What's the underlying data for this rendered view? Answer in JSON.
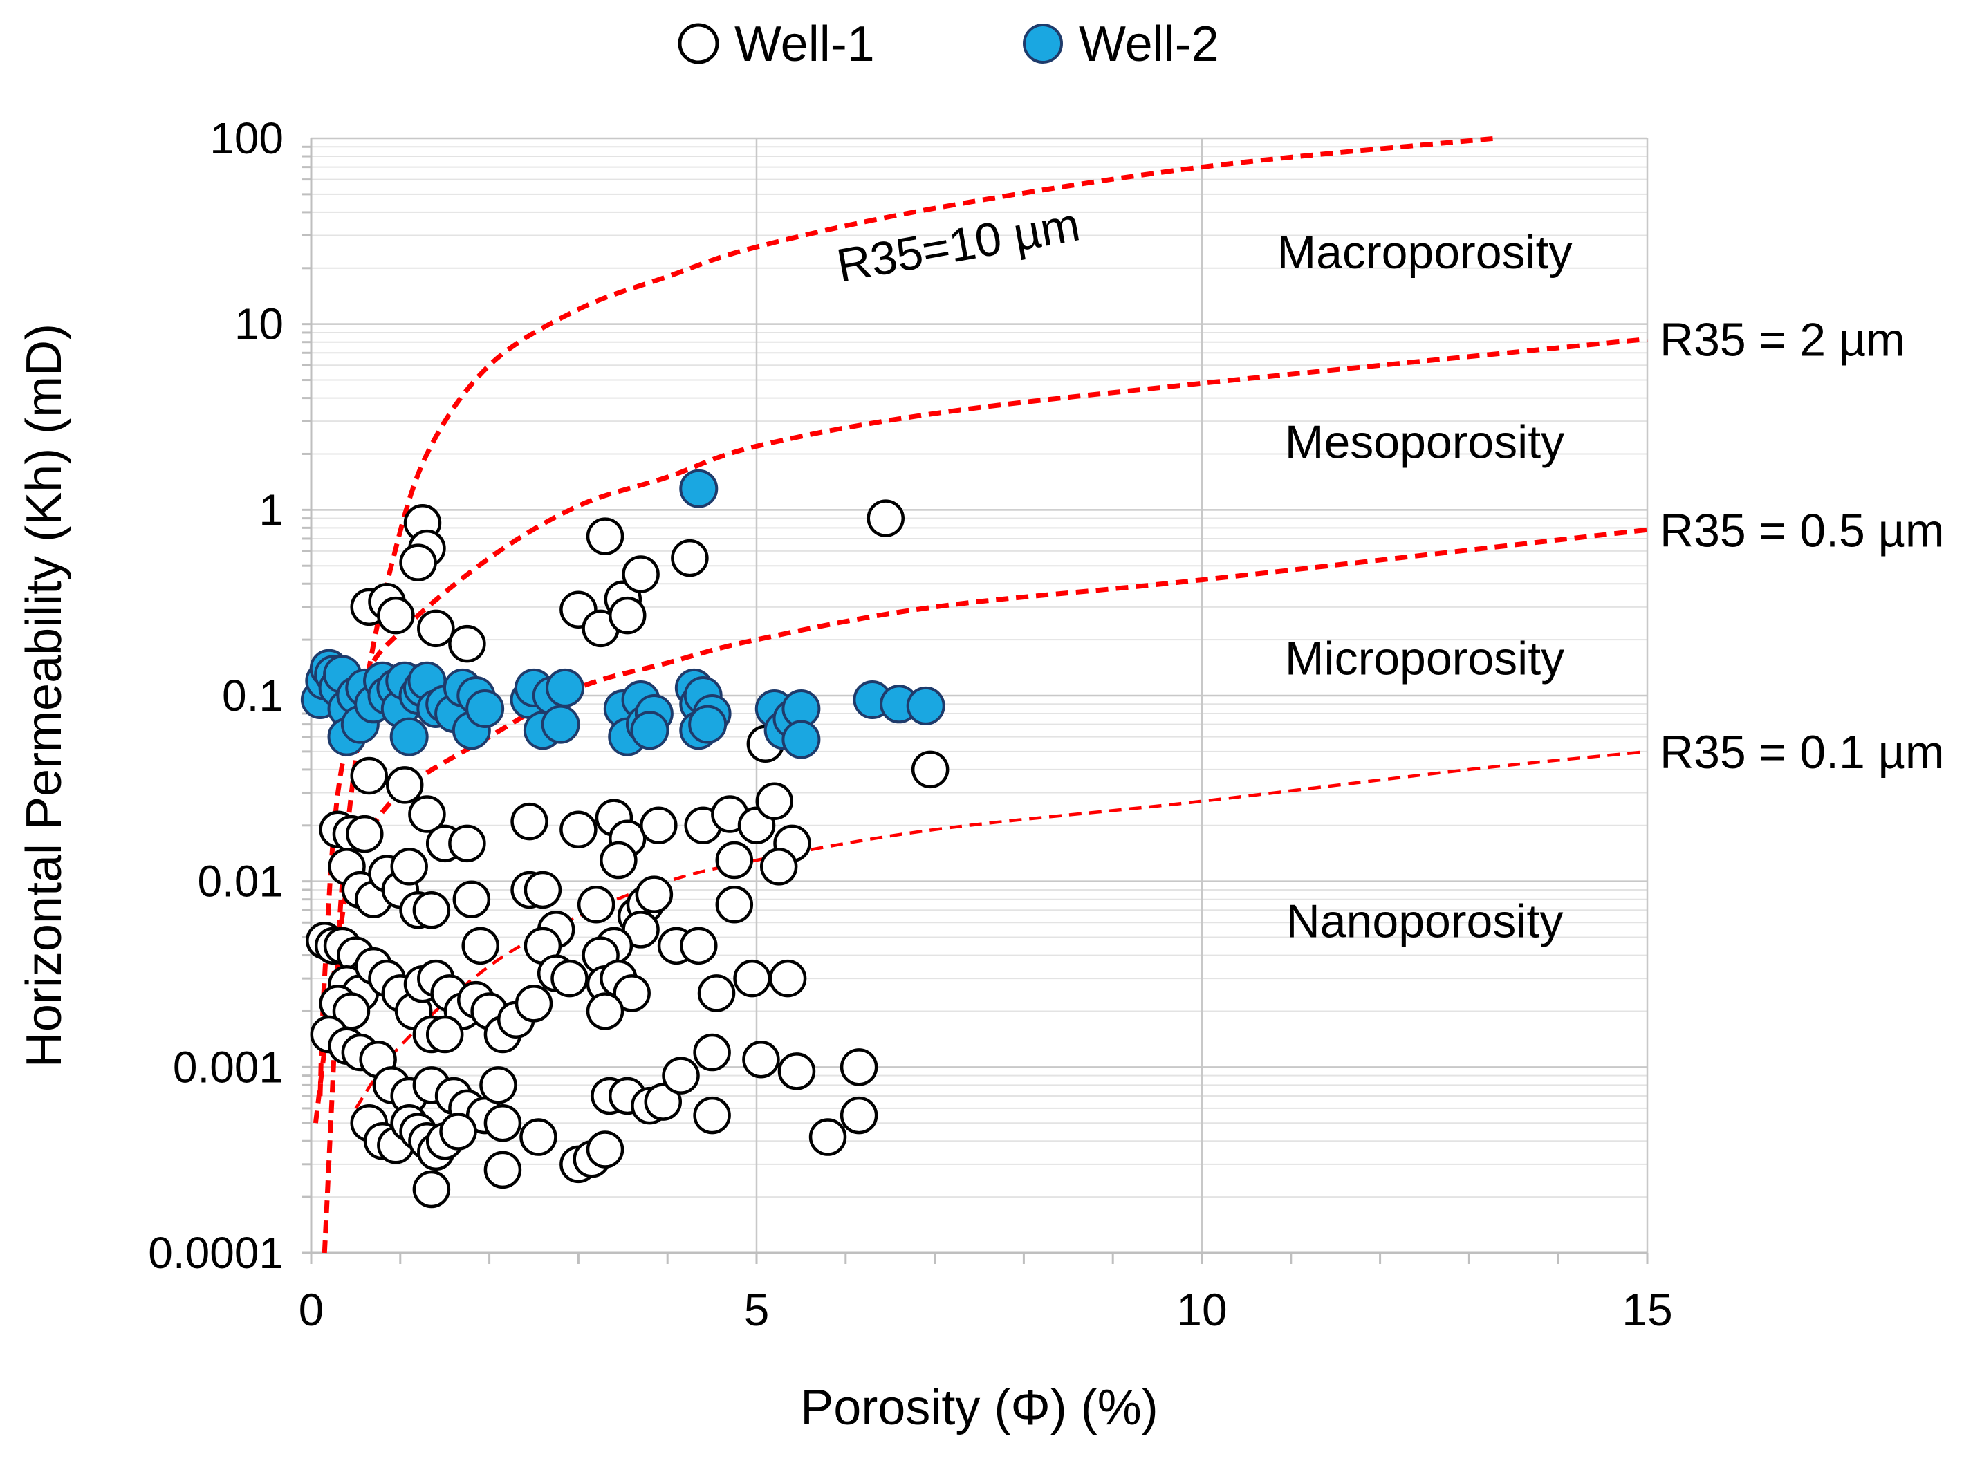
{
  "chart_data": {
    "type": "scatter",
    "title": "",
    "xlabel": "Porosity (Φ) (%)",
    "ylabel": "Horizontal Permeability (Kh) (mD)",
    "xlim": [
      0,
      15
    ],
    "ylim": [
      0.0001,
      100
    ],
    "yscale": "log",
    "grid": true,
    "legend_position": "top-center",
    "x_ticks": [
      {
        "value": 0,
        "label": "0"
      },
      {
        "value": 5,
        "label": "5"
      },
      {
        "value": 10,
        "label": "10"
      },
      {
        "value": 15,
        "label": "15"
      }
    ],
    "y_ticks": [
      {
        "value": 100,
        "label": "100"
      },
      {
        "value": 10,
        "label": "10"
      },
      {
        "value": 1,
        "label": "1"
      },
      {
        "value": 0.1,
        "label": "0.1"
      },
      {
        "value": 0.01,
        "label": "0.01"
      },
      {
        "value": 0.001,
        "label": "0.001"
      },
      {
        "value": 0.0001,
        "label": "0.0001"
      }
    ],
    "legend": [
      {
        "name": "Well-1",
        "fill": "#ffffff",
        "stroke": "#000000"
      },
      {
        "name": "Well-2",
        "fill": "#1aa7e1",
        "stroke": "#1f3b6b"
      }
    ],
    "regions": [
      {
        "label": "Macroporosity",
        "x": 12.5,
        "y": 20
      },
      {
        "label": "Mesoporosity",
        "x": 12.5,
        "y": 1.9
      },
      {
        "label": "Microporosity",
        "x": 12.5,
        "y": 0.13
      },
      {
        "label": "Nanoporosity",
        "x": 12.5,
        "y": 0.005
      }
    ],
    "curves": [
      {
        "name": "R35=10 µm",
        "label": "R35=10 µm",
        "color": "#ff0000",
        "label_pos": "inside",
        "points": [
          [
            0.15,
            0.0001
          ],
          [
            0.25,
            0.001
          ],
          [
            0.35,
            0.01
          ],
          [
            0.6,
            0.1
          ],
          [
            0.9,
            0.5
          ],
          [
            1.3,
            2
          ],
          [
            2,
            6
          ],
          [
            3,
            12
          ],
          [
            4,
            18
          ],
          [
            5,
            26
          ],
          [
            7,
            42
          ],
          [
            10,
            70
          ],
          [
            13.3,
            100
          ]
        ]
      },
      {
        "name": "R35 = 2 µm",
        "label": "R35 = 2 µm",
        "color": "#ff0000",
        "label_pos": "right",
        "points": [
          [
            0.1,
            0.0007
          ],
          [
            0.15,
            0.003
          ],
          [
            0.3,
            0.03
          ],
          [
            0.6,
            0.12
          ],
          [
            1,
            0.22
          ],
          [
            2,
            0.55
          ],
          [
            3,
            1.05
          ],
          [
            4,
            1.5
          ],
          [
            5,
            2.2
          ],
          [
            7,
            3.3
          ],
          [
            10,
            4.8
          ],
          [
            15,
            8.3
          ]
        ]
      },
      {
        "name": "R35 = 0.5 µm",
        "label": "R35 = 0.5 µm",
        "color": "#ff0000",
        "label_pos": "right",
        "points": [
          [
            0.05,
            0.0005
          ],
          [
            0.3,
            0.0045
          ],
          [
            0.5,
            0.013
          ],
          [
            1,
            0.03
          ],
          [
            2,
            0.06
          ],
          [
            3,
            0.11
          ],
          [
            4,
            0.15
          ],
          [
            5,
            0.2
          ],
          [
            7,
            0.3
          ],
          [
            10,
            0.42
          ],
          [
            15,
            0.78
          ]
        ]
      },
      {
        "name": "R35 = 0.1 µm",
        "label": "R35 = 0.1 µm",
        "color": "#ff0000",
        "label_pos": "right",
        "points": [
          [
            0.5,
            0.0006
          ],
          [
            1,
            0.0013
          ],
          [
            2,
            0.0035
          ],
          [
            3,
            0.0065
          ],
          [
            4,
            0.01
          ],
          [
            5,
            0.013
          ],
          [
            7,
            0.019
          ],
          [
            10,
            0.027
          ],
          [
            13,
            0.04
          ],
          [
            15,
            0.05
          ]
        ]
      }
    ],
    "series": [
      {
        "name": "Well-1",
        "points": [
          [
            1.25,
            0.85
          ],
          [
            1.3,
            0.62
          ],
          [
            1.2,
            0.52
          ],
          [
            0.65,
            0.3
          ],
          [
            0.85,
            0.32
          ],
          [
            0.95,
            0.27
          ],
          [
            1.4,
            0.23
          ],
          [
            1.75,
            0.19
          ],
          [
            3.3,
            0.72
          ],
          [
            3.0,
            0.29
          ],
          [
            3.25,
            0.23
          ],
          [
            3.5,
            0.33
          ],
          [
            3.55,
            0.27
          ],
          [
            3.7,
            0.45
          ],
          [
            4.25,
            0.55
          ],
          [
            6.45,
            0.9
          ],
          [
            5.1,
            0.055
          ],
          [
            6.95,
            0.04
          ],
          [
            0.65,
            0.037
          ],
          [
            1.05,
            0.033
          ],
          [
            1.3,
            0.023
          ],
          [
            0.3,
            0.019
          ],
          [
            0.45,
            0.018
          ],
          [
            0.6,
            0.018
          ],
          [
            0.4,
            0.012
          ],
          [
            0.55,
            0.009
          ],
          [
            0.7,
            0.008
          ],
          [
            0.85,
            0.011
          ],
          [
            1.0,
            0.009
          ],
          [
            1.1,
            0.012
          ],
          [
            1.2,
            0.007
          ],
          [
            1.35,
            0.007
          ],
          [
            1.5,
            0.016
          ],
          [
            1.75,
            0.016
          ],
          [
            1.8,
            0.008
          ],
          [
            1.9,
            0.0045
          ],
          [
            2.45,
            0.021
          ],
          [
            3.0,
            0.019
          ],
          [
            3.4,
            0.022
          ],
          [
            3.55,
            0.017
          ],
          [
            3.45,
            0.013
          ],
          [
            3.9,
            0.02
          ],
          [
            4.4,
            0.02
          ],
          [
            4.7,
            0.023
          ],
          [
            5.0,
            0.02
          ],
          [
            5.2,
            0.027
          ],
          [
            5.4,
            0.016
          ],
          [
            4.75,
            0.013
          ],
          [
            5.25,
            0.012
          ],
          [
            4.75,
            0.0075
          ],
          [
            2.45,
            0.009
          ],
          [
            2.6,
            0.009
          ],
          [
            2.75,
            0.0055
          ],
          [
            3.2,
            0.0075
          ],
          [
            3.65,
            0.0065
          ],
          [
            3.75,
            0.0075
          ],
          [
            3.85,
            0.0085
          ],
          [
            3.7,
            0.0055
          ],
          [
            4.1,
            0.0045
          ],
          [
            4.35,
            0.0045
          ],
          [
            3.4,
            0.0045
          ],
          [
            3.25,
            0.004
          ],
          [
            3.3,
            0.0028
          ],
          [
            3.45,
            0.003
          ],
          [
            3.6,
            0.0025
          ],
          [
            3.3,
            0.002
          ],
          [
            2.6,
            0.0045
          ],
          [
            2.75,
            0.0032
          ],
          [
            2.9,
            0.003
          ],
          [
            0.15,
            0.0048
          ],
          [
            0.25,
            0.0045
          ],
          [
            0.35,
            0.0045
          ],
          [
            0.5,
            0.004
          ],
          [
            0.6,
            0.003
          ],
          [
            0.4,
            0.0028
          ],
          [
            0.55,
            0.0025
          ],
          [
            0.3,
            0.0022
          ],
          [
            0.45,
            0.002
          ],
          [
            0.7,
            0.0035
          ],
          [
            0.85,
            0.003
          ],
          [
            1.0,
            0.0025
          ],
          [
            1.15,
            0.002
          ],
          [
            1.25,
            0.0028
          ],
          [
            1.4,
            0.003
          ],
          [
            1.55,
            0.0025
          ],
          [
            1.7,
            0.002
          ],
          [
            1.35,
            0.0015
          ],
          [
            1.5,
            0.0015
          ],
          [
            1.85,
            0.0023
          ],
          [
            2.0,
            0.002
          ],
          [
            2.15,
            0.0015
          ],
          [
            2.3,
            0.0018
          ],
          [
            2.5,
            0.0022
          ],
          [
            0.2,
            0.0015
          ],
          [
            0.4,
            0.0013
          ],
          [
            0.55,
            0.0012
          ],
          [
            0.75,
            0.0011
          ],
          [
            0.9,
            0.0008
          ],
          [
            1.1,
            0.0007
          ],
          [
            1.35,
            0.0008
          ],
          [
            1.6,
            0.0007
          ],
          [
            1.75,
            0.0006
          ],
          [
            1.95,
            0.00055
          ],
          [
            2.1,
            0.0008
          ],
          [
            2.15,
            0.0005
          ],
          [
            0.65,
            0.0005
          ],
          [
            0.8,
            0.0004
          ],
          [
            0.95,
            0.00038
          ],
          [
            1.1,
            0.0005
          ],
          [
            1.2,
            0.00045
          ],
          [
            1.3,
            0.0004
          ],
          [
            1.4,
            0.00035
          ],
          [
            1.5,
            0.0004
          ],
          [
            1.65,
            0.00045
          ],
          [
            1.35,
            0.00022
          ],
          [
            2.15,
            0.00028
          ],
          [
            2.55,
            0.00042
          ],
          [
            3.0,
            0.0003
          ],
          [
            3.15,
            0.00032
          ],
          [
            3.3,
            0.00036
          ],
          [
            3.35,
            0.0007
          ],
          [
            3.55,
            0.0007
          ],
          [
            3.8,
            0.00062
          ],
          [
            3.95,
            0.00065
          ],
          [
            4.15,
            0.0009
          ],
          [
            4.5,
            0.0012
          ],
          [
            4.5,
            0.00055
          ],
          [
            5.05,
            0.0011
          ],
          [
            5.45,
            0.00095
          ],
          [
            5.8,
            0.00042
          ],
          [
            6.15,
            0.00055
          ],
          [
            6.15,
            0.001
          ],
          [
            4.55,
            0.0025
          ],
          [
            4.95,
            0.003
          ],
          [
            5.35,
            0.003
          ]
        ]
      },
      {
        "name": "Well-2",
        "points": [
          [
            4.35,
            1.3
          ],
          [
            0.1,
            0.095
          ],
          [
            0.15,
            0.12
          ],
          [
            0.2,
            0.14
          ],
          [
            0.25,
            0.13
          ],
          [
            0.3,
            0.11
          ],
          [
            0.35,
            0.13
          ],
          [
            0.4,
            0.085
          ],
          [
            0.4,
            0.06
          ],
          [
            0.5,
            0.1
          ],
          [
            0.55,
            0.07
          ],
          [
            0.6,
            0.11
          ],
          [
            0.7,
            0.09
          ],
          [
            0.8,
            0.12
          ],
          [
            0.85,
            0.1
          ],
          [
            0.95,
            0.11
          ],
          [
            1.0,
            0.085
          ],
          [
            1.05,
            0.12
          ],
          [
            1.1,
            0.06
          ],
          [
            1.2,
            0.1
          ],
          [
            1.25,
            0.11
          ],
          [
            1.3,
            0.12
          ],
          [
            1.4,
            0.085
          ],
          [
            1.5,
            0.09
          ],
          [
            1.6,
            0.08
          ],
          [
            1.7,
            0.11
          ],
          [
            1.8,
            0.065
          ],
          [
            1.85,
            0.1
          ],
          [
            1.95,
            0.085
          ],
          [
            2.45,
            0.095
          ],
          [
            2.5,
            0.11
          ],
          [
            2.6,
            0.065
          ],
          [
            2.7,
            0.1
          ],
          [
            2.85,
            0.11
          ],
          [
            2.8,
            0.07
          ],
          [
            3.5,
            0.085
          ],
          [
            3.55,
            0.06
          ],
          [
            3.7,
            0.095
          ],
          [
            3.75,
            0.07
          ],
          [
            3.85,
            0.08
          ],
          [
            3.8,
            0.065
          ],
          [
            4.3,
            0.11
          ],
          [
            4.35,
            0.09
          ],
          [
            4.4,
            0.1
          ],
          [
            4.5,
            0.08
          ],
          [
            4.35,
            0.065
          ],
          [
            4.45,
            0.07
          ],
          [
            5.2,
            0.085
          ],
          [
            5.3,
            0.065
          ],
          [
            5.4,
            0.075
          ],
          [
            5.5,
            0.085
          ],
          [
            5.5,
            0.058
          ],
          [
            6.3,
            0.095
          ],
          [
            6.6,
            0.09
          ],
          [
            6.9,
            0.088
          ]
        ]
      }
    ]
  }
}
